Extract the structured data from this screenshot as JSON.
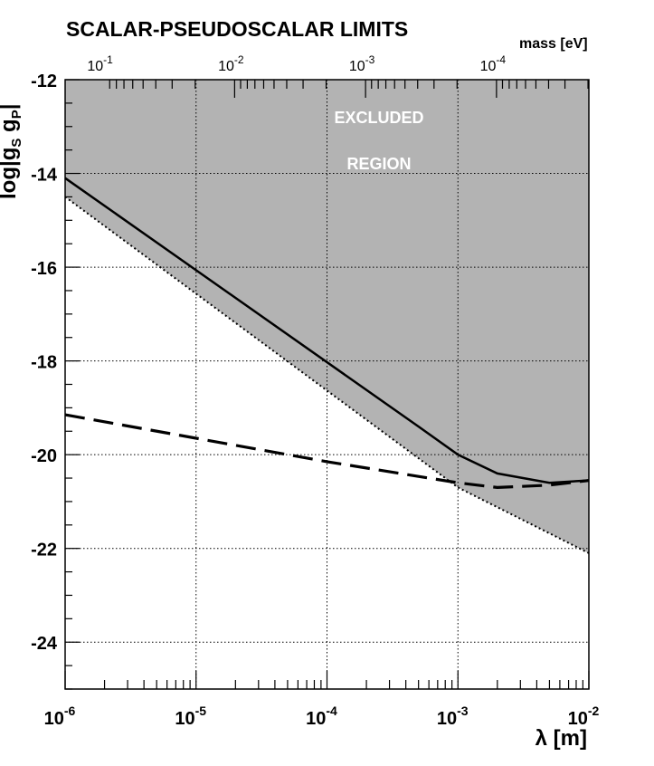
{
  "chart_data": {
    "type": "line",
    "title": "SCALAR-PSEUDOSCALAR LIMITS",
    "xlabel": "λ  [m]",
    "ylabel": "log|g_S g_P|",
    "x2label": "mass [eV]",
    "xscale": "log",
    "xlim": [
      1e-06,
      0.01
    ],
    "ylim": [
      -25,
      -12
    ],
    "x_ticks": [
      {
        "value": 1e-06,
        "base": "10",
        "exp": "-6"
      },
      {
        "value": 1e-05,
        "base": "10",
        "exp": "-5"
      },
      {
        "value": 0.0001,
        "base": "10",
        "exp": "-4"
      },
      {
        "value": 0.001,
        "base": "10",
        "exp": "-3"
      },
      {
        "value": 0.01,
        "base": "10",
        "exp": "-2"
      }
    ],
    "x2_ticks": [
      {
        "lambda": 1.97e-06,
        "base": "10",
        "exp": "-1"
      },
      {
        "lambda": 1.97e-05,
        "base": "10",
        "exp": "-2"
      },
      {
        "lambda": 0.000197,
        "base": "10",
        "exp": "-3"
      },
      {
        "lambda": 0.00197,
        "base": "10",
        "exp": "-4"
      }
    ],
    "y_ticks": [
      "-12",
      "-14",
      "-16",
      "-18",
      "-20",
      "-22",
      "-24"
    ],
    "y_tick_values": [
      -12,
      -14,
      -16,
      -18,
      -20,
      -22,
      -24
    ],
    "grid": true,
    "annotation": [
      "EXCLUDED",
      "REGION"
    ],
    "colors": {
      "excluded_fill": "#b3b3b3",
      "line": "#000000",
      "grid": "#000000"
    },
    "series": [
      {
        "style": "solid",
        "x": [
          1e-06,
          0.0005,
          0.001,
          0.002,
          0.005,
          0.01
        ],
        "y": [
          -14.1,
          -19.4,
          -20.0,
          -20.4,
          -20.6,
          -20.55
        ]
      },
      {
        "style": "dashed",
        "x": [
          1e-06,
          1e-05,
          0.0001,
          0.001,
          0.002,
          0.005,
          0.01
        ],
        "y": [
          -19.15,
          -19.65,
          -20.15,
          -20.6,
          -20.7,
          -20.65,
          -20.55
        ]
      },
      {
        "style": "dotted",
        "x": [
          1e-06,
          0.001,
          0.01
        ],
        "y": [
          -14.5,
          -20.7,
          -22.1
        ]
      }
    ],
    "excluded_region_boundary": {
      "x": [
        1e-06,
        0.001,
        0.01
      ],
      "y": [
        -14.5,
        -20.7,
        -22.1
      ]
    }
  }
}
